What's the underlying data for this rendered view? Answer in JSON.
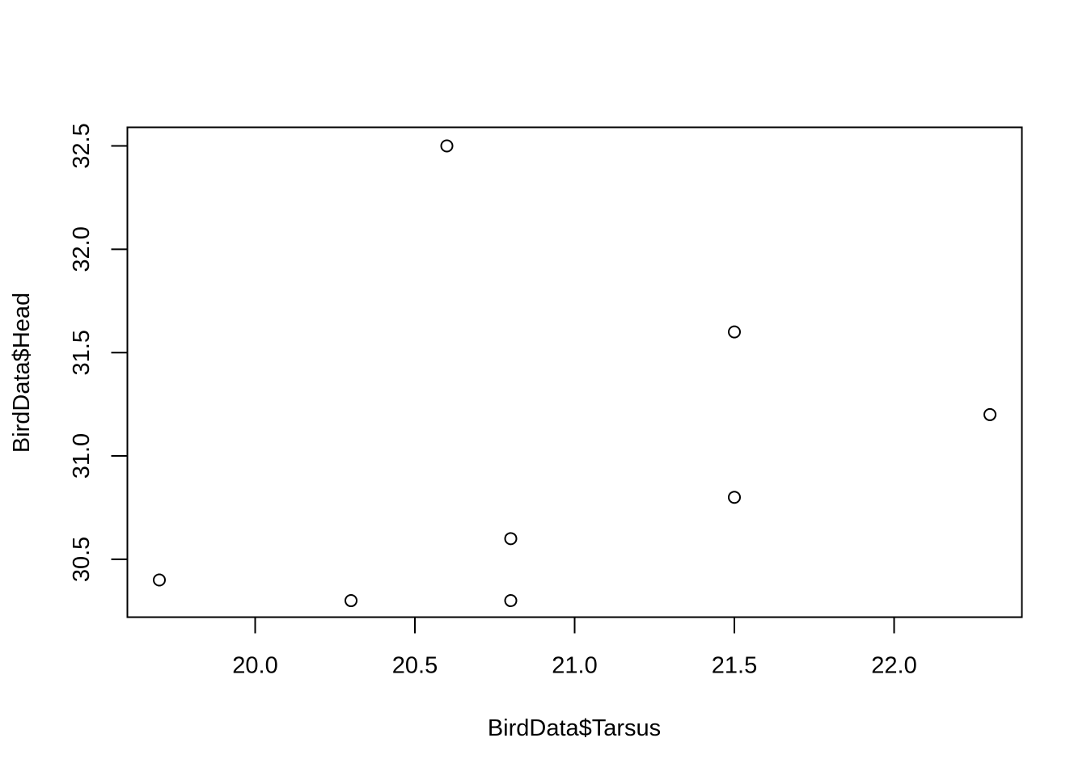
{
  "chart_data": {
    "type": "scatter",
    "title": "",
    "xlabel": "BirdData$Tarsus",
    "ylabel": "BirdData$Head",
    "xlim": [
      19.6,
      22.4
    ],
    "ylim": [
      30.22,
      32.59
    ],
    "xticks": [
      20.0,
      20.5,
      21.0,
      21.5,
      22.0
    ],
    "xtick_labels": [
      "20.0",
      "20.5",
      "21.0",
      "21.5",
      "22.0"
    ],
    "yticks": [
      30.5,
      31.0,
      31.5,
      32.0,
      32.5
    ],
    "ytick_labels": [
      "30.5",
      "31.0",
      "31.5",
      "32.0",
      "32.5"
    ],
    "grid": false,
    "marker": "open-circle",
    "color": "#000000",
    "points": [
      {
        "x": 19.7,
        "y": 30.4
      },
      {
        "x": 20.3,
        "y": 30.3
      },
      {
        "x": 20.6,
        "y": 32.5
      },
      {
        "x": 20.8,
        "y": 30.6
      },
      {
        "x": 20.8,
        "y": 30.3
      },
      {
        "x": 21.5,
        "y": 31.6
      },
      {
        "x": 21.5,
        "y": 30.8
      },
      {
        "x": 22.3,
        "y": 31.2
      }
    ]
  }
}
